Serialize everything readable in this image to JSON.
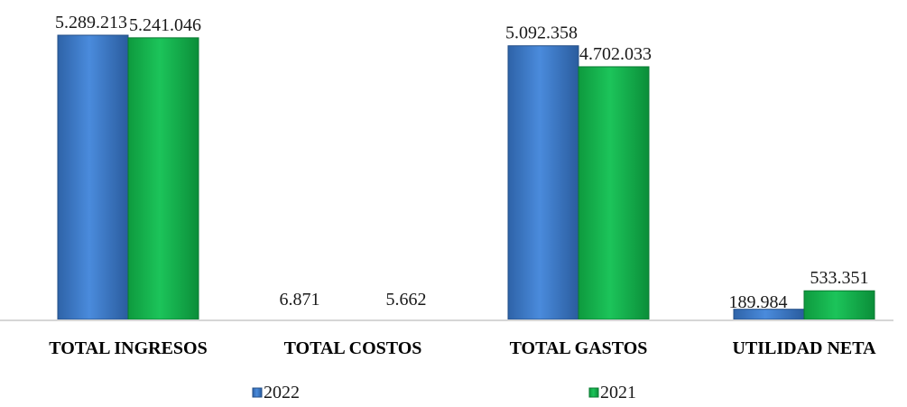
{
  "chart_data": {
    "type": "bar",
    "categories": [
      "TOTAL INGRESOS",
      "TOTAL COSTOS",
      "TOTAL GASTOS",
      "UTILIDAD NETA"
    ],
    "series": [
      {
        "name": "2022",
        "values": [
          5289213,
          6871,
          5092358,
          189984
        ],
        "labels": [
          "5.289.213",
          "6.871",
          "5.092.358",
          "189.984"
        ],
        "color": "#3A78C9"
      },
      {
        "name": "2021",
        "values": [
          5241046,
          5662,
          4702033,
          533351
        ],
        "labels": [
          "5.241.046",
          "5.662",
          "4.702.033",
          "533.351"
        ],
        "color": "#12B24A"
      }
    ],
    "ylim": [
      0,
      5289213
    ],
    "grid": false,
    "legend_position": "bottom"
  }
}
